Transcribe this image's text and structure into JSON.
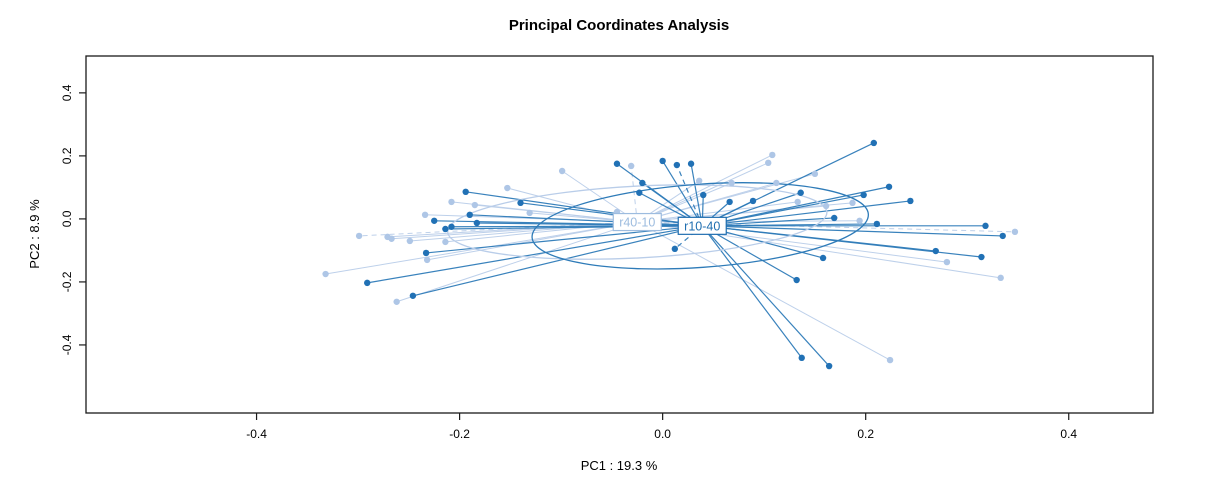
{
  "title": "Principal Coordinates Analysis",
  "axes": {
    "xlabel": "PC1 : 19.3 %",
    "ylabel": "PC2 : 8.9 %",
    "xlim": [
      -0.568,
      0.483
    ],
    "ylim": [
      -0.616,
      0.517
    ],
    "x_ticks": [
      -0.4,
      -0.2,
      0.0,
      0.2,
      0.4
    ],
    "y_ticks": [
      -0.4,
      -0.2,
      0.0,
      0.2,
      0.4
    ],
    "x_tick_labels": [
      "-0.4",
      "-0.2",
      "0.0",
      "0.2",
      "0.4"
    ],
    "y_tick_labels": [
      "-0.4",
      "-0.2",
      "0.0",
      "0.2",
      "0.4"
    ],
    "grid": false
  },
  "chart_data": {
    "type": "scatter",
    "subtype": "pcoa-ordination-spider",
    "title": "Principal Coordinates Analysis",
    "xlabel": "PC1 : 19.3 %",
    "ylabel": "PC2 : 8.9 %",
    "legend_position": "none",
    "groups": [
      {
        "name": "r40-10",
        "point_color": "#aec6e6",
        "line_color": "#b9cde9",
        "label_color": "#9dbcdf",
        "line_width": 1.0,
        "centroid": [
          -0.025,
          -0.01
        ],
        "ellipse": {
          "cx": -0.025,
          "cy": -0.01,
          "rx": 0.187,
          "ry": 0.114,
          "rotate": -3
        },
        "dashed": [
          12,
          28,
          4
        ],
        "points": [
          [
            -0.099,
            0.152
          ],
          [
            -0.153,
            0.098
          ],
          [
            -0.208,
            0.054
          ],
          [
            -0.234,
            0.013
          ],
          [
            -0.299,
            -0.054
          ],
          [
            -0.271,
            -0.057
          ],
          [
            -0.267,
            -0.063
          ],
          [
            -0.249,
            -0.07
          ],
          [
            -0.214,
            -0.073
          ],
          [
            -0.232,
            -0.13
          ],
          [
            -0.332,
            -0.175
          ],
          [
            -0.262,
            -0.263
          ],
          [
            -0.031,
            0.168
          ],
          [
            0.036,
            0.121
          ],
          [
            0.068,
            0.114
          ],
          [
            0.108,
            0.203
          ],
          [
            0.104,
            0.178
          ],
          [
            0.112,
            0.114
          ],
          [
            0.15,
            0.143
          ],
          [
            0.133,
            0.054
          ],
          [
            -0.045,
            0.022
          ],
          [
            -0.131,
            0.019
          ],
          [
            -0.185,
            0.044
          ],
          [
            0.187,
            0.051
          ],
          [
            0.161,
            0.041
          ],
          [
            0.194,
            -0.006
          ],
          [
            0.28,
            -0.137
          ],
          [
            0.333,
            -0.187
          ],
          [
            0.347,
            -0.041
          ],
          [
            0.224,
            -0.448
          ]
        ]
      },
      {
        "name": "r10-40",
        "point_color": "#2171b5",
        "line_color": "#2e7bb8",
        "label_color": "#1f6eb0",
        "line_width": 1.2,
        "centroid": [
          0.039,
          -0.022
        ],
        "ellipse": {
          "cx": 0.037,
          "cy": -0.022,
          "rx": 0.166,
          "ry": 0.132,
          "rotate": -4
        },
        "dashed": [
          12,
          23
        ],
        "points": [
          [
            -0.194,
            0.086
          ],
          [
            -0.14,
            0.051
          ],
          [
            -0.225,
            -0.006
          ],
          [
            -0.19,
            0.013
          ],
          [
            -0.183,
            -0.013
          ],
          [
            -0.214,
            -0.032
          ],
          [
            -0.208,
            -0.025
          ],
          [
            -0.233,
            -0.108
          ],
          [
            -0.291,
            -0.203
          ],
          [
            -0.246,
            -0.244
          ],
          [
            -0.045,
            0.175
          ],
          [
            0.0,
            0.184
          ],
          [
            0.014,
            0.171
          ],
          [
            0.028,
            0.175
          ],
          [
            -0.02,
            0.114
          ],
          [
            -0.023,
            0.083
          ],
          [
            0.04,
            0.076
          ],
          [
            0.089,
            0.057
          ],
          [
            0.136,
            0.083
          ],
          [
            0.169,
            0.003
          ],
          [
            0.066,
            0.054
          ],
          [
            0.198,
            0.076
          ],
          [
            0.211,
            -0.016
          ],
          [
            0.012,
            -0.095
          ],
          [
            0.223,
            0.102
          ],
          [
            0.244,
            0.057
          ],
          [
            0.269,
            -0.102
          ],
          [
            0.314,
            -0.121
          ],
          [
            0.318,
            -0.022
          ],
          [
            0.335,
            -0.054
          ],
          [
            0.208,
            0.241
          ],
          [
            0.158,
            -0.124
          ],
          [
            0.132,
            -0.194
          ],
          [
            0.137,
            -0.441
          ],
          [
            0.164,
            -0.467
          ]
        ]
      }
    ]
  }
}
